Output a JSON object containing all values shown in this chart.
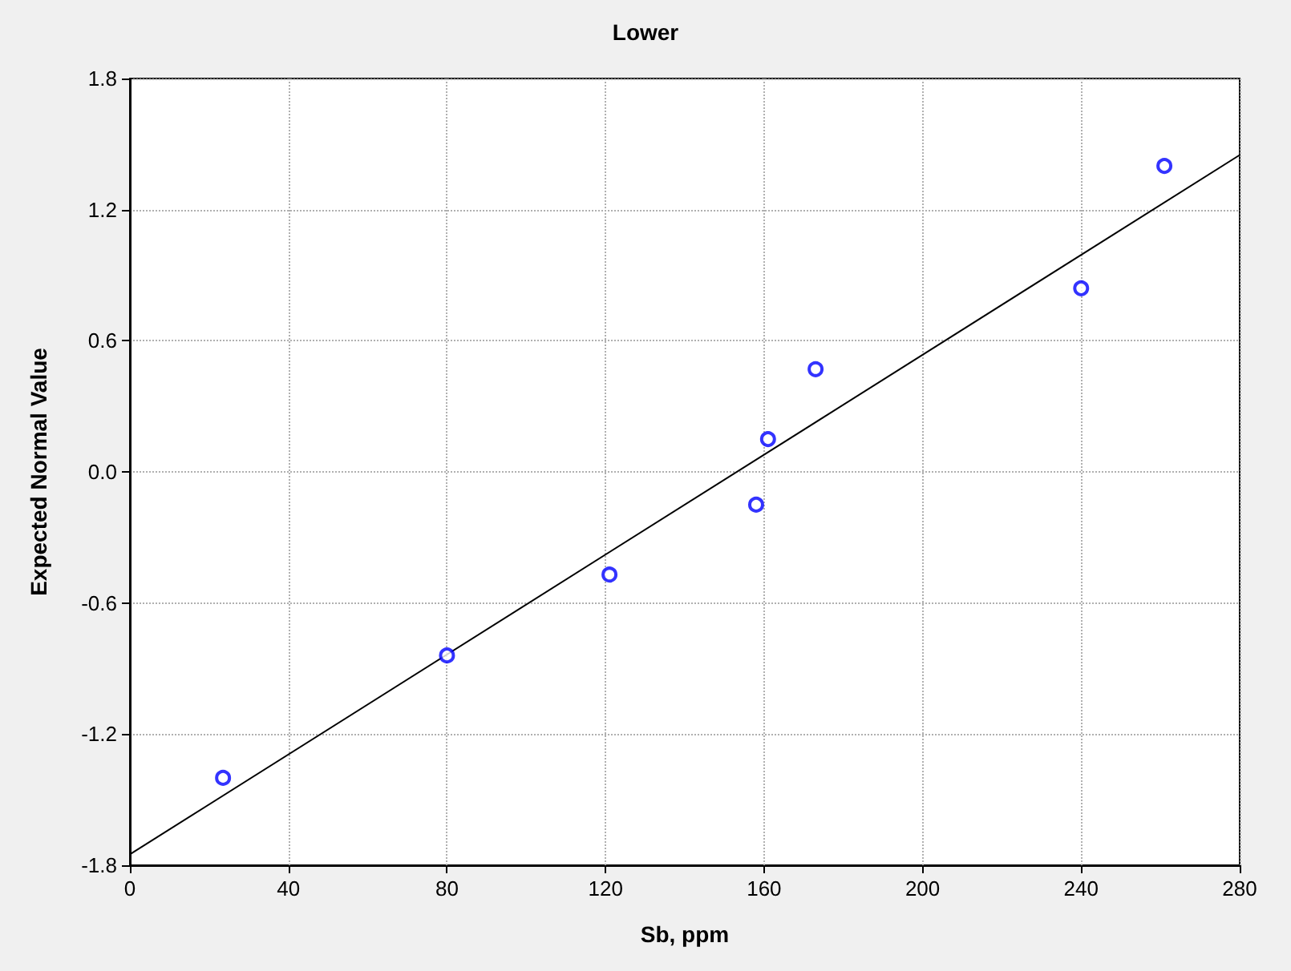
{
  "chart_data": {
    "type": "scatter",
    "title": "Lower",
    "xlabel": "Sb, ppm",
    "ylabel": "Expected Normal Value",
    "xlim": [
      0,
      280
    ],
    "xticks": [
      0,
      40,
      80,
      120,
      160,
      200,
      240,
      280
    ],
    "ylim": [
      -1.8,
      1.8
    ],
    "yticks": [
      -1.8,
      -1.2,
      -0.6,
      {
        "value": 0,
        "label": "0.0"
      },
      0.6,
      1.2,
      1.8
    ],
    "grid": true,
    "series": [
      {
        "color": "#0000ff",
        "marker": "circle",
        "x": [
          23.5,
          80,
          121,
          158,
          161,
          173,
          240,
          261
        ],
        "values": [
          -1.4,
          -0.84,
          -0.47,
          -0.15,
          0.15,
          0.47,
          0.84,
          1.4
        ]
      },
      {
        "type": "line",
        "color": "#000000",
        "marker": "none",
        "line_style": "solid",
        "x": [
          0,
          280
        ],
        "values": [
          -1.75,
          1.45
        ]
      }
    ]
  }
}
